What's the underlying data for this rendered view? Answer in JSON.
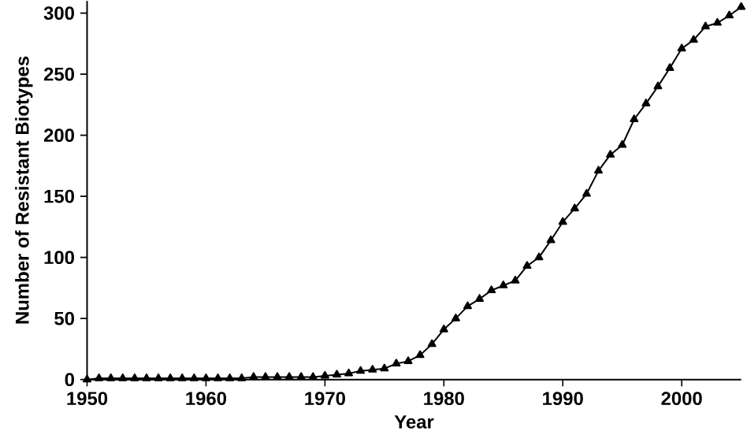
{
  "chart_data": {
    "type": "line",
    "xlabel": "Year",
    "ylabel": "Number of Resistant Biotypes",
    "x": [
      1950,
      1951,
      1952,
      1953,
      1954,
      1955,
      1956,
      1957,
      1958,
      1959,
      1960,
      1961,
      1962,
      1963,
      1964,
      1965,
      1966,
      1967,
      1968,
      1969,
      1970,
      1971,
      1972,
      1973,
      1974,
      1975,
      1976,
      1977,
      1978,
      1979,
      1980,
      1981,
      1982,
      1983,
      1984,
      1985,
      1986,
      1987,
      1988,
      1989,
      1990,
      1991,
      1992,
      1993,
      1994,
      1995,
      1996,
      1997,
      1998,
      1999,
      2000,
      2001,
      2002,
      2003,
      2004,
      2005
    ],
    "series": [
      {
        "color": "#000000",
        "values": [
          0,
          1,
          1,
          1,
          1,
          1,
          1,
          1,
          1,
          1,
          1,
          1,
          1,
          1,
          2,
          2,
          2,
          2,
          2,
          2,
          3,
          4,
          5,
          7,
          8,
          9,
          13,
          15,
          20,
          29,
          41,
          50,
          60,
          66,
          73,
          77,
          81,
          93,
          100,
          114,
          129,
          140,
          152,
          171,
          184,
          192,
          213,
          226,
          240,
          255,
          271,
          278,
          289,
          292,
          298,
          305
        ]
      }
    ],
    "xlim": [
      1950,
      2005
    ],
    "ylim": [
      0,
      310
    ],
    "xticks": [
      1950,
      1960,
      1970,
      1980,
      1990,
      2000
    ],
    "yticks": [
      0,
      50,
      100,
      150,
      200,
      250,
      300
    ],
    "marker": "triangle",
    "line_style": "solid",
    "grid": false
  }
}
